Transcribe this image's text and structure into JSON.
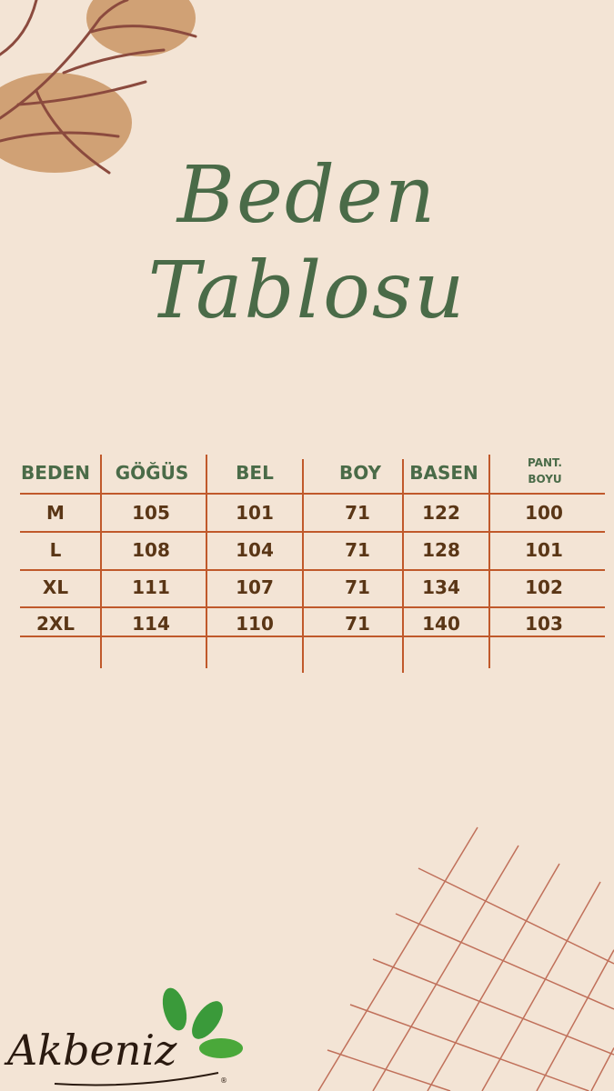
{
  "title": {
    "line1": "Beden",
    "line2": "Tablosu"
  },
  "table": {
    "headers": [
      "BEDEN",
      "GÖĞÜS",
      "BEL",
      "BOY",
      "BASEN",
      "PANT.\nBOYU"
    ],
    "header_pant_line1": "PANT.",
    "header_pant_line2": "BOYU",
    "rows": [
      [
        "M",
        "105",
        "101",
        "71",
        "122",
        "100"
      ],
      [
        "L",
        "108",
        "104",
        "71",
        "128",
        "101"
      ],
      [
        "XL",
        "111",
        "107",
        "71",
        "134",
        "102"
      ],
      [
        "2XL",
        "114",
        "110",
        "71",
        "140",
        "103"
      ]
    ]
  },
  "logo": {
    "text": "Akbeniz",
    "mark": "®"
  },
  "colors": {
    "background": "#f3e4d5",
    "title": "#4a6b48",
    "lines": "#c0592b",
    "values": "#5a3616",
    "logo_leaf": "#3a9a3a"
  }
}
